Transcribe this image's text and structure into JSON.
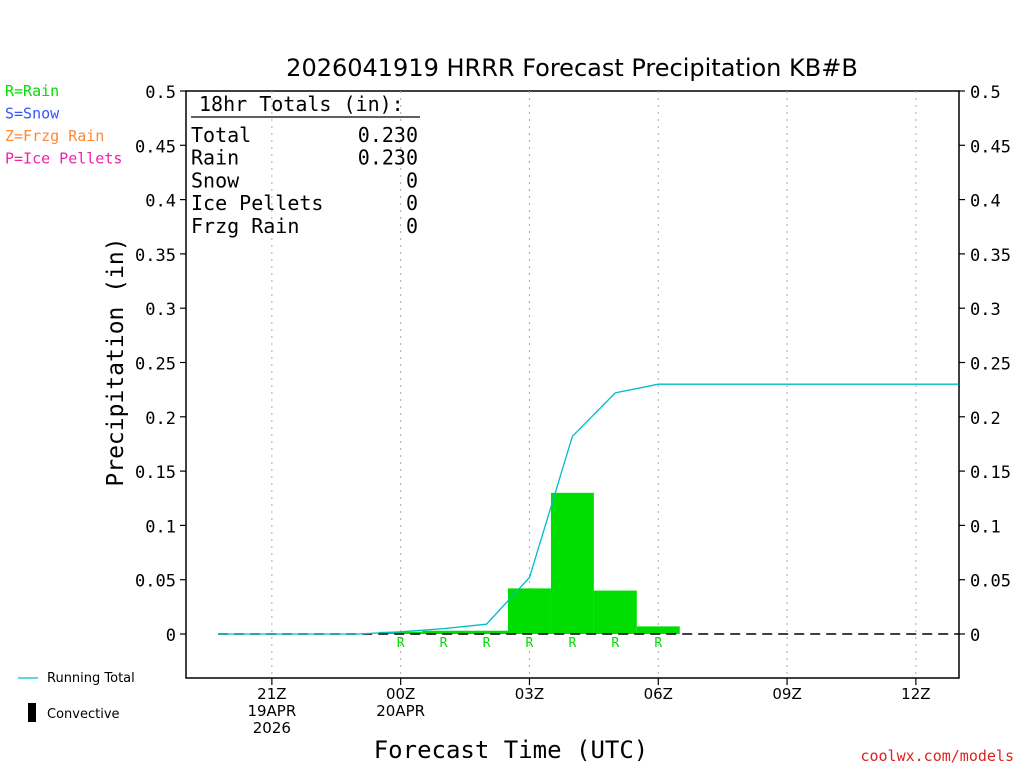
{
  "chart_data": {
    "type": "bar",
    "title": "2026041919 HRRR Forecast Precipitation KB#B",
    "xlabel": "Forecast Time (UTC)",
    "ylabel": "Precipitation (in)",
    "ylim": [
      -0.04,
      0.5
    ],
    "xlim_hours_after_19Z": [
      0,
      18
    ],
    "y_ticks": [
      0,
      0.05,
      0.1,
      0.15,
      0.2,
      0.25,
      0.3,
      0.35,
      0.4,
      0.45,
      0.5
    ],
    "y_tick_labels": [
      "0",
      "0.05",
      "0.1",
      "0.15",
      "0.2",
      "0.25",
      "0.3",
      "0.35",
      "0.4",
      "0.45",
      "0.5"
    ],
    "x_ticks": [
      {
        "hour": 2,
        "lines": [
          "21Z",
          "19APR",
          "2026"
        ]
      },
      {
        "hour": 5,
        "lines": [
          "00Z",
          "20APR"
        ]
      },
      {
        "hour": 8,
        "lines": [
          "03Z"
        ]
      },
      {
        "hour": 11,
        "lines": [
          "06Z"
        ]
      },
      {
        "hour": 14,
        "lines": [
          "09Z"
        ]
      },
      {
        "hour": 17,
        "lines": [
          "12Z"
        ]
      }
    ],
    "grid": "vertical dotted at ticks",
    "bars": {
      "name": "Rain",
      "color": "#00dd00",
      "hours": [
        5,
        6,
        7,
        8,
        9,
        10,
        11
      ],
      "values": [
        0.002,
        0.003,
        0.003,
        0.042,
        0.13,
        0.04,
        0.007
      ],
      "type_labels": [
        "R",
        "R",
        "R",
        "R",
        "R",
        "R",
        "R"
      ]
    },
    "running_total": {
      "name": "Running Total",
      "color": "#00bbcc",
      "hours": [
        0.75,
        4,
        5,
        6,
        7,
        8,
        9,
        10,
        11,
        18
      ],
      "values": [
        0,
        0,
        0.002,
        0.005,
        0.009,
        0.052,
        0.182,
        0.222,
        0.23,
        0.23
      ]
    },
    "convective": {
      "name": "Convective",
      "color": "#000000",
      "values": []
    }
  },
  "totals_box": {
    "heading": "18hr Totals (in):",
    "rows": [
      {
        "label": "Total",
        "value": "0.230"
      },
      {
        "label": "Rain",
        "value": "0.230"
      },
      {
        "label": "Snow",
        "value": "0"
      },
      {
        "label": "Ice Pellets",
        "value": "0"
      },
      {
        "label": "Frzg Rain",
        "value": "0"
      }
    ]
  },
  "type_key": [
    {
      "text": "R=Rain",
      "color": "#00dd00"
    },
    {
      "text": "S=Snow",
      "color": "#3355ff"
    },
    {
      "text": "Z=Frzg Rain",
      "color": "#ff8833"
    },
    {
      "text": "P=Ice Pellets",
      "color": "#ee22aa"
    }
  ],
  "legend": {
    "running_total_label": "Running Total",
    "convective_label": "Convective"
  },
  "credit": {
    "text": "coolwx.com/models",
    "color": "#dd2222"
  }
}
